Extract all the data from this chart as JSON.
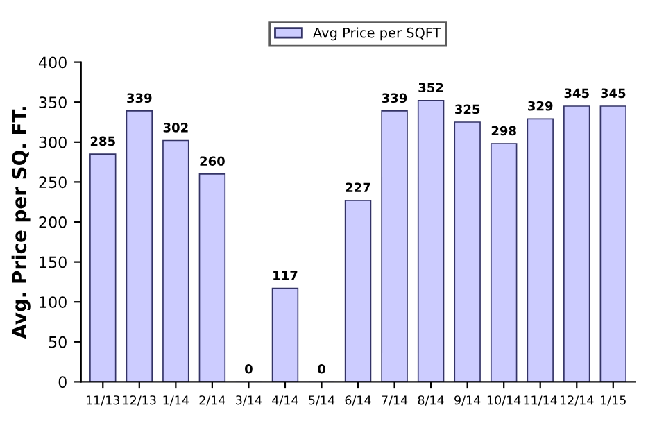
{
  "chart_data": {
    "type": "bar",
    "ylabel": "Avg. Price per SQ. FT.",
    "categories": [
      "11/13",
      "12/13",
      "1/14",
      "2/14",
      "3/14",
      "4/14",
      "5/14",
      "6/14",
      "7/14",
      "8/14",
      "9/14",
      "10/14",
      "11/14",
      "12/14",
      "1/15"
    ],
    "series": [
      {
        "name": "Avg Price per SQFT",
        "color": "#ccccff",
        "values": [
          285,
          339,
          302,
          260,
          0,
          117,
          0,
          227,
          339,
          352,
          325,
          298,
          329,
          345,
          345
        ]
      }
    ],
    "ylim": [
      0,
      400
    ],
    "yticks": [
      0,
      50,
      100,
      150,
      200,
      250,
      300,
      350,
      400
    ],
    "data_labels": true,
    "legend": "top",
    "grid": false
  }
}
